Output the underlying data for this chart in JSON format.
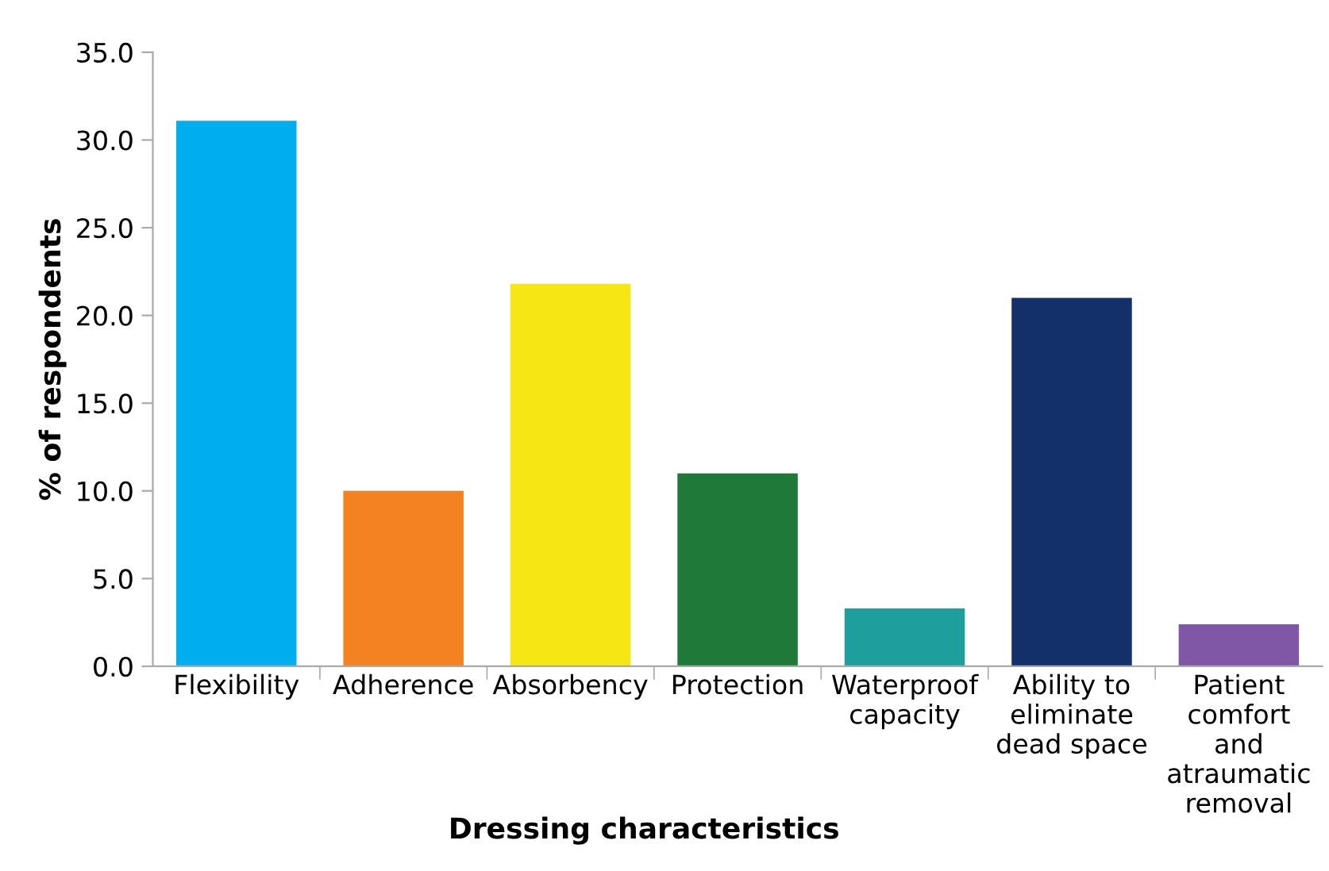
{
  "chart_data": {
    "type": "bar",
    "xlabel": "Dressing characteristics",
    "ylabel": "% of respondents",
    "categories": [
      "Flexibility",
      "Adherence",
      "Absorbency",
      "Protection",
      "Waterproof\ncapacity",
      "Ability to\neliminate\ndead space",
      "Patient\ncomfort\nand\natraumatic\nremoval"
    ],
    "values": [
      31.1,
      10.0,
      21.8,
      11.0,
      3.3,
      21.0,
      2.4
    ],
    "colors": [
      "#00aeef",
      "#f58220",
      "#f5e614",
      "#1f7a3a",
      "#1f9e9e",
      "#13306a",
      "#7f57a6"
    ],
    "ylim": [
      0,
      35
    ],
    "yticks": [
      {
        "value": 0,
        "label": "0.0"
      },
      {
        "value": 5,
        "label": "5.0"
      },
      {
        "value": 10,
        "label": "10.0"
      },
      {
        "value": 15,
        "label": "15.0"
      },
      {
        "value": 20,
        "label": "20.0"
      },
      {
        "value": 25,
        "label": "25.0"
      },
      {
        "value": 30,
        "label": "30.0"
      },
      {
        "value": 35,
        "label": "35.0"
      }
    ],
    "grid": false,
    "legend": false
  }
}
